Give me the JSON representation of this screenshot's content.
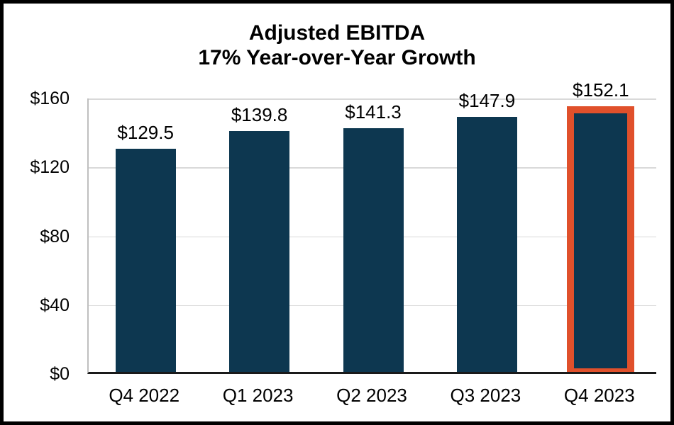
{
  "chart_data": {
    "type": "bar",
    "title": "Adjusted EBITDA",
    "subtitle": "17% Year-over-Year Growth",
    "categories": [
      "Q4 2022",
      "Q1 2023",
      "Q2 2023",
      "Q3 2023",
      "Q4 2023"
    ],
    "values": [
      129.5,
      139.8,
      141.3,
      147.9,
      152.1
    ],
    "data_labels": [
      "$129.5",
      "$139.8",
      "$141.3",
      "$147.9",
      "$152.1"
    ],
    "y_ticks": [
      {
        "label": "$160",
        "value": 160
      },
      {
        "label": "$120",
        "value": 120
      },
      {
        "label": "$80",
        "value": 80
      },
      {
        "label": "$40",
        "value": 40
      },
      {
        "label": "$0",
        "value": 0
      }
    ],
    "ylim": [
      0,
      160
    ],
    "xlabel": "",
    "ylabel": "",
    "grid": true,
    "legend": false,
    "highlight_index": 4,
    "colors": {
      "bar": "#0d3750",
      "highlight_border": "#e0502b",
      "gridline": "#d9d9d9",
      "axis_line": "#1a1a1a",
      "text": "#000000",
      "frame_border": "#000000"
    }
  }
}
